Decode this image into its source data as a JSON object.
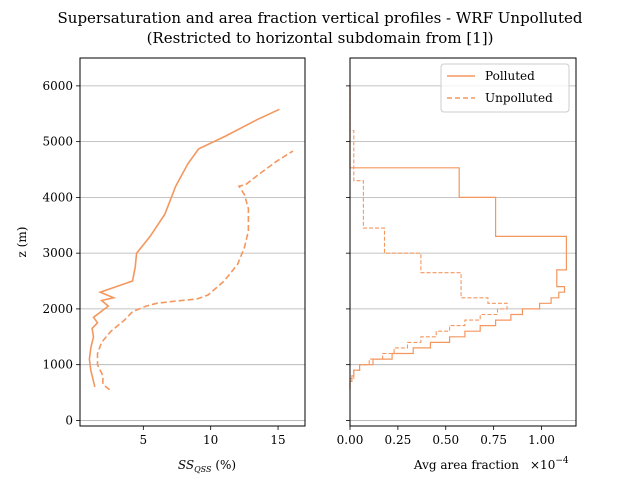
{
  "figure": {
    "title_line1": "Supersaturation and area fraction vertical profiles - WRF Unpolluted",
    "title_line2": "(Restricted to horizontal subdomain from [1])"
  },
  "colors": {
    "series": "#f4975f",
    "grid": "#b0b0b0",
    "axis": "#000000"
  },
  "chart_data": [
    {
      "type": "line",
      "xlabel_main": "SS",
      "xlabel_sub": "QSS",
      "xlabel_unit": " (%)",
      "ylabel": "z (m)",
      "xlim": [
        0.3,
        17
      ],
      "ylim": [
        -100,
        6500
      ],
      "xticks": [
        5,
        10,
        15
      ],
      "xtick_labels": [
        "5",
        "10",
        "15"
      ],
      "yticks": [
        0,
        1000,
        2000,
        3000,
        4000,
        5000,
        6000
      ],
      "ytick_labels": [
        "0",
        "1000",
        "2000",
        "3000",
        "4000",
        "5000",
        "6000"
      ],
      "grid": "horizontal",
      "series": [
        {
          "name": "Polluted",
          "style": "solid",
          "points": [
            [
              1.4,
              600
            ],
            [
              1.3,
              700
            ],
            [
              1.1,
              900
            ],
            [
              1.0,
              1100
            ],
            [
              1.1,
              1300
            ],
            [
              1.3,
              1500
            ],
            [
              1.2,
              1650
            ],
            [
              1.6,
              1750
            ],
            [
              1.3,
              1850
            ],
            [
              2.4,
              2050
            ],
            [
              1.9,
              2150
            ],
            [
              2.8,
              2200
            ],
            [
              1.8,
              2300
            ],
            [
              4.2,
              2500
            ],
            [
              4.4,
              2750
            ],
            [
              4.5,
              3000
            ],
            [
              5.5,
              3300
            ],
            [
              6.6,
              3700
            ],
            [
              7.4,
              4200
            ],
            [
              8.3,
              4600
            ],
            [
              9.1,
              4870
            ],
            [
              11.1,
              5100
            ],
            [
              13.5,
              5400
            ],
            [
              15.1,
              5580
            ]
          ]
        },
        {
          "name": "Unpolluted",
          "style": "dashed",
          "points": [
            [
              2.5,
              550
            ],
            [
              2.0,
              650
            ],
            [
              2.0,
              800
            ],
            [
              1.6,
              1000
            ],
            [
              1.6,
              1200
            ],
            [
              1.9,
              1400
            ],
            [
              2.6,
              1600
            ],
            [
              3.6,
              1800
            ],
            [
              4.2,
              1950
            ],
            [
              5.2,
              2050
            ],
            [
              6.0,
              2100
            ],
            [
              7.0,
              2130
            ],
            [
              9.0,
              2180
            ],
            [
              9.8,
              2250
            ],
            [
              11.0,
              2500
            ],
            [
              12.0,
              2800
            ],
            [
              12.5,
              3100
            ],
            [
              12.8,
              3400
            ],
            [
              12.8,
              3800
            ],
            [
              12.5,
              4050
            ],
            [
              12.1,
              4200
            ],
            [
              12.6,
              4230
            ],
            [
              13.5,
              4400
            ],
            [
              14.9,
              4650
            ],
            [
              16.1,
              4830
            ]
          ]
        }
      ]
    },
    {
      "type": "line",
      "xlabel": "Avg area fraction",
      "scale_label_base": "×10",
      "scale_label_exp": "−4",
      "xlim": [
        0,
        1.18
      ],
      "ylim": [
        -100,
        6500
      ],
      "xticks": [
        0.0,
        0.25,
        0.5,
        0.75,
        1.0
      ],
      "xtick_labels": [
        "0.00",
        "0.25",
        "0.50",
        "0.75",
        "1.00"
      ],
      "yticks": [
        0,
        1000,
        2000,
        3000,
        4000,
        5000,
        6000
      ],
      "grid": "horizontal",
      "legend_position": "upper-right",
      "series": [
        {
          "name": "Polluted",
          "style": "solid",
          "steps": [
            [
              0.0,
              600
            ],
            [
              0.0,
              700
            ],
            [
              0.01,
              750
            ],
            [
              0.02,
              850
            ],
            [
              0.05,
              950
            ],
            [
              0.12,
              1050
            ],
            [
              0.22,
              1150
            ],
            [
              0.33,
              1250
            ],
            [
              0.42,
              1350
            ],
            [
              0.52,
              1450
            ],
            [
              0.6,
              1550
            ],
            [
              0.68,
              1650
            ],
            [
              0.76,
              1750
            ],
            [
              0.84,
              1850
            ],
            [
              0.9,
              1950
            ],
            [
              0.99,
              2050
            ],
            [
              1.05,
              2150
            ],
            [
              1.09,
              2250
            ],
            [
              1.12,
              2350
            ],
            [
              1.08,
              2550
            ],
            [
              1.13,
              2750
            ],
            [
              1.13,
              3050
            ],
            [
              1.01,
              3250
            ],
            [
              1.01,
              3500
            ],
            [
              0.76,
              3850
            ],
            [
              0.76,
              4200
            ],
            [
              0.57,
              4500
            ],
            [
              0.57,
              4850
            ],
            [
              0.0,
              5220
            ],
            [
              0.0,
              6000
            ]
          ],
          "step_bounds": [
            550,
            650,
            700,
            800,
            900,
            1000,
            1100,
            1200,
            1300,
            1400,
            1500,
            1600,
            1700,
            1800,
            1900,
            2000,
            2100,
            2200,
            2300,
            2400,
            2700,
            3300,
            3300,
            3300,
            3300,
            4000,
            4000,
            4530,
            4530,
            5230,
            6000
          ]
        },
        {
          "name": "Unpolluted",
          "style": "dashed"
        }
      ]
    }
  ],
  "legend": {
    "items": [
      "Polluted",
      "Unpolluted"
    ]
  }
}
